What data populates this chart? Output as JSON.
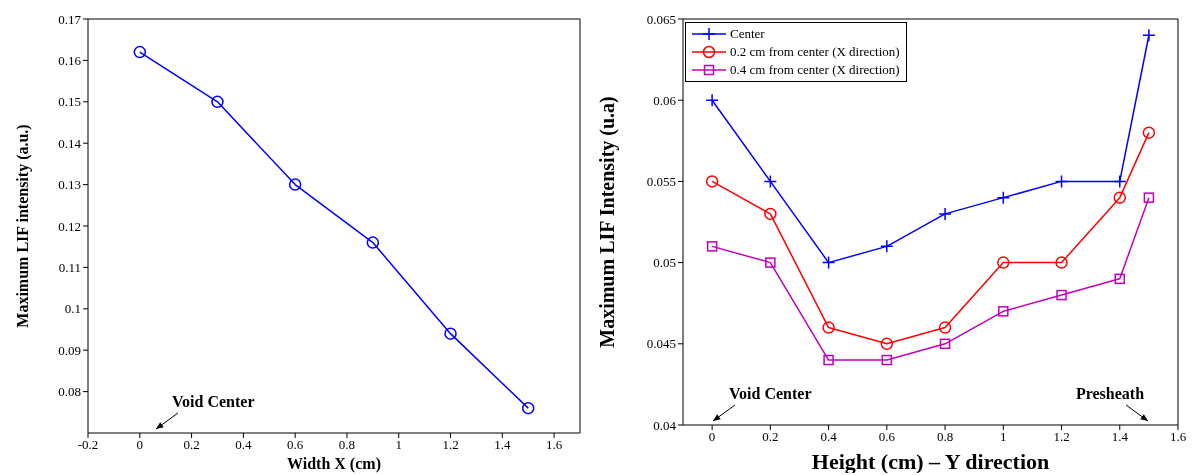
{
  "chart_data": [
    {
      "type": "line",
      "xlabel": "Width X (cm)",
      "ylabel": "Maximum LIF intensity (a.u.)",
      "x": [
        0,
        0.3,
        0.6,
        0.9,
        1.2,
        1.5
      ],
      "series": [
        {
          "color": "#0000ff",
          "marker": "circle",
          "values": [
            0.162,
            0.15,
            0.13,
            0.116,
            0.094,
            0.076
          ]
        }
      ],
      "xlim": [
        -0.2,
        1.7
      ],
      "xticks": [
        -0.2,
        0,
        0.2,
        0.4,
        0.6,
        0.8,
        1,
        1.2,
        1.4,
        1.6
      ],
      "ylim": [
        0.07,
        0.17
      ],
      "yticks": [
        0.08,
        0.09,
        0.1,
        0.11,
        0.12,
        0.13,
        0.14,
        0.15,
        0.16,
        0.17
      ],
      "annotations": [
        "Void Center"
      ],
      "grid": false,
      "legend": false
    },
    {
      "type": "line",
      "xlabel": "Height (cm) – Y direction",
      "ylabel": "Maximum LIF Intensity (u.a)",
      "x": [
        0,
        0.2,
        0.4,
        0.6,
        0.8,
        1,
        1.2,
        1.4,
        1.5
      ],
      "series": [
        {
          "name": "Center",
          "color": "#0000ff",
          "marker": "cross",
          "values": [
            0.06,
            0.055,
            0.05,
            0.051,
            0.053,
            0.054,
            0.055,
            0.055,
            0.064
          ]
        },
        {
          "name": "0.2 cm from center (X direction)",
          "color": "#ff0000",
          "marker": "circle",
          "values": [
            0.055,
            0.053,
            0.046,
            0.045,
            0.046,
            0.05,
            0.05,
            0.054,
            0.058
          ]
        },
        {
          "name": "0.4 cm from center (X direction)",
          "color": "#bf00bf",
          "marker": "square",
          "values": [
            0.051,
            0.05,
            0.044,
            0.044,
            0.045,
            0.047,
            0.048,
            0.049,
            0.054
          ]
        }
      ],
      "xlim": [
        -0.1,
        1.6
      ],
      "xticks": [
        0,
        0.2,
        0.4,
        0.6,
        0.8,
        1,
        1.2,
        1.4,
        1.6
      ],
      "ylim": [
        0.04,
        0.065
      ],
      "yticks": [
        0.04,
        0.045,
        0.05,
        0.055,
        0.06,
        0.065
      ],
      "annotations": [
        "Void Center",
        "Presheath"
      ],
      "grid": false,
      "legend": "top left"
    }
  ]
}
